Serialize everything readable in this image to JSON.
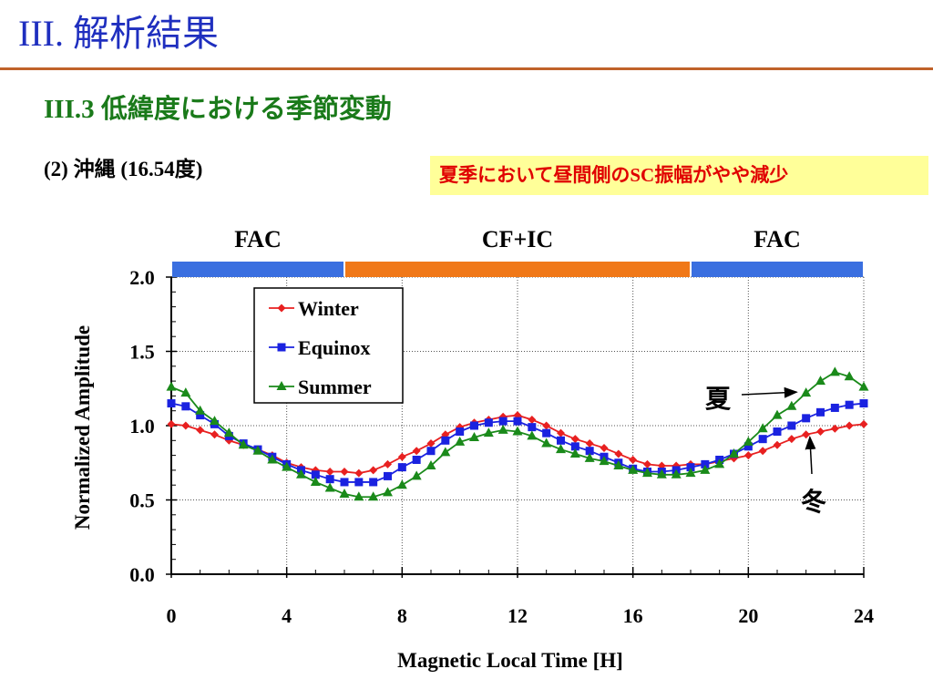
{
  "slide": {
    "title": "III. 解析結果",
    "section": "III.3 低緯度における季節変動",
    "subtitle": "(2) 沖縄 (16.54度)",
    "note": "夏季において昼間側のSC振幅がやや減少"
  },
  "colors": {
    "title": "#1f2fbf",
    "rule": "#c0622a",
    "section": "#1a7a1a",
    "note_bg": "#ffff99",
    "note_text": "#e00000",
    "fac_band": "#3a6fe0",
    "cfic_band": "#f07818"
  },
  "chart_data": {
    "type": "line",
    "xlabel": "Magnetic Local Time [H]",
    "ylabel": "Normalized Amplitude",
    "xlim": [
      0,
      24
    ],
    "ylim": [
      0,
      2.0
    ],
    "x_ticks": [
      0,
      4,
      8,
      12,
      16,
      20,
      24
    ],
    "x_tick_labels": [
      "0",
      "4",
      "8",
      "12",
      "16",
      "20",
      "24"
    ],
    "y_ticks": [
      0,
      0.5,
      1.0,
      1.5,
      2.0
    ],
    "y_tick_labels": [
      "0.0",
      "0.5",
      "1.0",
      "1.5",
      "2.0"
    ],
    "grid": true,
    "legend_position": "top-left",
    "region_bands": [
      {
        "label": "FAC",
        "x_start": 0,
        "x_end": 6,
        "color": "#3a6fe0"
      },
      {
        "label": "CF+IC",
        "x_start": 6,
        "x_end": 18,
        "color": "#f07818"
      },
      {
        "label": "FAC",
        "x_start": 18,
        "x_end": 24,
        "color": "#3a6fe0"
      }
    ],
    "x": [
      0,
      0.5,
      1,
      1.5,
      2,
      2.5,
      3,
      3.5,
      4,
      4.5,
      5,
      5.5,
      6,
      6.5,
      7,
      7.5,
      8,
      8.5,
      9,
      9.5,
      10,
      10.5,
      11,
      11.5,
      12,
      12.5,
      13,
      13.5,
      14,
      14.5,
      15,
      15.5,
      16,
      16.5,
      17,
      17.5,
      18,
      18.5,
      19,
      19.5,
      20,
      20.5,
      21,
      21.5,
      22,
      22.5,
      23,
      23.5,
      24
    ],
    "series": [
      {
        "name": "Winter",
        "color": "#e82020",
        "marker": "diamond",
        "values": [
          1.01,
          1.0,
          0.97,
          0.94,
          0.9,
          0.87,
          0.84,
          0.8,
          0.75,
          0.72,
          0.7,
          0.69,
          0.69,
          0.68,
          0.7,
          0.74,
          0.79,
          0.83,
          0.88,
          0.94,
          0.99,
          1.02,
          1.04,
          1.06,
          1.07,
          1.04,
          1.0,
          0.95,
          0.91,
          0.88,
          0.85,
          0.81,
          0.77,
          0.74,
          0.73,
          0.73,
          0.74,
          0.74,
          0.76,
          0.78,
          0.8,
          0.83,
          0.87,
          0.91,
          0.94,
          0.96,
          0.98,
          1.0,
          1.01
        ]
      },
      {
        "name": "Equinox",
        "color": "#1a22e0",
        "marker": "square",
        "values": [
          1.15,
          1.13,
          1.07,
          1.01,
          0.93,
          0.88,
          0.84,
          0.79,
          0.74,
          0.7,
          0.67,
          0.64,
          0.62,
          0.62,
          0.62,
          0.66,
          0.72,
          0.77,
          0.83,
          0.9,
          0.96,
          1.0,
          1.02,
          1.03,
          1.03,
          0.99,
          0.95,
          0.9,
          0.86,
          0.83,
          0.79,
          0.75,
          0.71,
          0.69,
          0.69,
          0.7,
          0.72,
          0.74,
          0.77,
          0.81,
          0.86,
          0.91,
          0.96,
          1.0,
          1.05,
          1.09,
          1.12,
          1.14,
          1.15
        ]
      },
      {
        "name": "Summer",
        "color": "#1a8a1a",
        "marker": "triangle",
        "values": [
          1.26,
          1.22,
          1.1,
          1.03,
          0.95,
          0.87,
          0.83,
          0.77,
          0.72,
          0.67,
          0.62,
          0.58,
          0.54,
          0.52,
          0.52,
          0.55,
          0.6,
          0.66,
          0.73,
          0.82,
          0.89,
          0.92,
          0.95,
          0.97,
          0.96,
          0.93,
          0.88,
          0.84,
          0.81,
          0.78,
          0.76,
          0.73,
          0.7,
          0.68,
          0.67,
          0.67,
          0.68,
          0.7,
          0.74,
          0.81,
          0.89,
          0.98,
          1.07,
          1.13,
          1.22,
          1.3,
          1.36,
          1.33,
          1.26
        ]
      }
    ],
    "annotations": [
      {
        "text": "夏",
        "points_to_x": 21.8,
        "points_to_y": 1.22
      },
      {
        "text": "冬",
        "points_to_x": 22.1,
        "points_to_y": 0.96
      }
    ]
  }
}
